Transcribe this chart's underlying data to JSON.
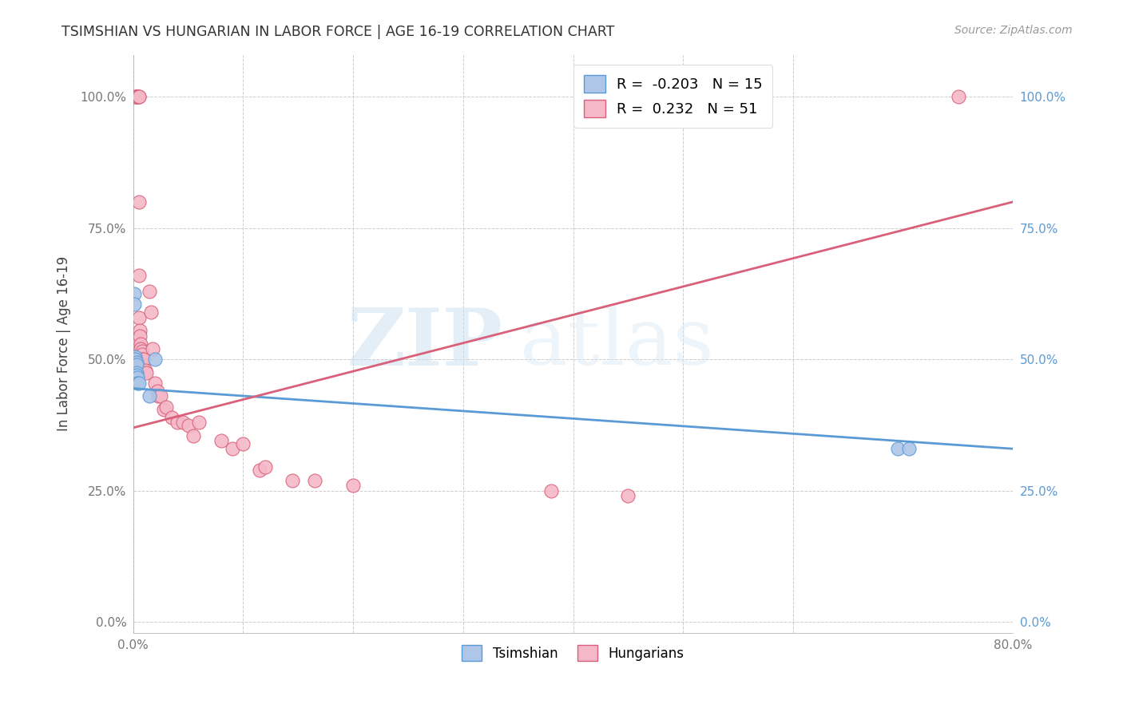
{
  "title": "TSIMSHIAN VS HUNGARIAN IN LABOR FORCE | AGE 16-19 CORRELATION CHART",
  "source": "Source: ZipAtlas.com",
  "xlabel": "",
  "ylabel": "In Labor Force | Age 16-19",
  "xlim": [
    0.0,
    0.8
  ],
  "ylim": [
    -0.02,
    1.08
  ],
  "ytick_labels": [
    "0.0%",
    "25.0%",
    "50.0%",
    "75.0%",
    "100.0%"
  ],
  "ytick_values": [
    0.0,
    0.25,
    0.5,
    0.75,
    1.0
  ],
  "xtick_labels": [
    "0.0%",
    "",
    "",
    "",
    "",
    "",
    "",
    "80.0%"
  ],
  "xtick_values": [
    0.0,
    0.1,
    0.2,
    0.3,
    0.4,
    0.5,
    0.6,
    0.8
  ],
  "tsimshian_R": -0.203,
  "tsimshian_N": 15,
  "hungarian_R": 0.232,
  "hungarian_N": 51,
  "tsimshian_color": "#aec6e8",
  "tsimshian_line_color": "#5b9bd5",
  "hungarian_color": "#f4b8c8",
  "hungarian_line_color": "#d9607a",
  "watermark_zip": "ZIP",
  "watermark_atlas": "atlas",
  "tsimshian_x": [
    0.001,
    0.001,
    0.002,
    0.002,
    0.003,
    0.003,
    0.003,
    0.003,
    0.004,
    0.004,
    0.005,
    0.015,
    0.02,
    0.695,
    0.705
  ],
  "tsimshian_y": [
    0.625,
    0.605,
    0.505,
    0.5,
    0.495,
    0.49,
    0.475,
    0.47,
    0.465,
    0.455,
    0.455,
    0.43,
    0.5,
    0.33,
    0.33
  ],
  "hungarian_x": [
    0.002,
    0.003,
    0.003,
    0.004,
    0.004,
    0.004,
    0.004,
    0.005,
    0.005,
    0.005,
    0.005,
    0.005,
    0.006,
    0.006,
    0.007,
    0.007,
    0.008,
    0.008,
    0.008,
    0.008,
    0.009,
    0.009,
    0.01,
    0.011,
    0.012,
    0.015,
    0.016,
    0.018,
    0.02,
    0.022,
    0.023,
    0.025,
    0.028,
    0.03,
    0.035,
    0.04,
    0.045,
    0.05,
    0.055,
    0.06,
    0.08,
    0.09,
    0.1,
    0.115,
    0.12,
    0.145,
    0.165,
    0.2,
    0.38,
    0.45,
    0.75
  ],
  "hungarian_y": [
    1.0,
    1.0,
    1.0,
    1.0,
    1.0,
    1.0,
    1.0,
    1.0,
    1.0,
    0.8,
    0.66,
    0.58,
    0.555,
    0.545,
    0.53,
    0.52,
    0.515,
    0.51,
    0.5,
    0.49,
    0.49,
    0.48,
    0.5,
    0.48,
    0.475,
    0.63,
    0.59,
    0.52,
    0.455,
    0.44,
    0.43,
    0.43,
    0.405,
    0.41,
    0.39,
    0.38,
    0.38,
    0.375,
    0.355,
    0.38,
    0.345,
    0.33,
    0.34,
    0.29,
    0.295,
    0.27,
    0.27,
    0.26,
    0.25,
    0.24,
    1.0
  ],
  "tsim_line_x0": 0.0,
  "tsim_line_x1": 0.8,
  "tsim_line_y0": 0.445,
  "tsim_line_y1": 0.33,
  "hung_line_x0": 0.0,
  "hung_line_x1": 0.8,
  "hung_line_y0": 0.37,
  "hung_line_y1": 0.8
}
